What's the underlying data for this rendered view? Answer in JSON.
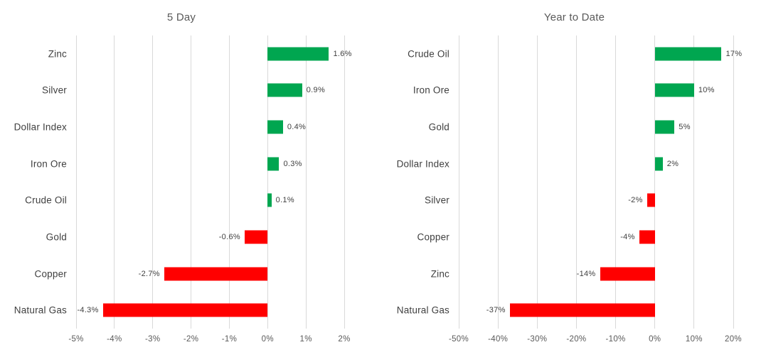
{
  "colors": {
    "positive_bar": "#00a650",
    "negative_bar": "#ff0000",
    "gridline": "#d9d9d9",
    "title_text": "#595959",
    "tick_text": "#595959",
    "label_text": "#404040"
  },
  "chart_data": [
    {
      "type": "bar",
      "orientation": "horizontal",
      "title": "5 Day",
      "categories": [
        "Zinc",
        "Silver",
        "Dollar Index",
        "Iron Ore",
        "Crude Oil",
        "Gold",
        "Copper",
        "Natural Gas"
      ],
      "values": [
        1.6,
        0.9,
        0.4,
        0.3,
        0.1,
        -0.6,
        -2.7,
        -4.3
      ],
      "value_labels": [
        "1.6%",
        "0.9%",
        "0.4%",
        "0.3%",
        "0.1%",
        "-0.6%",
        "-2.7%",
        "-4.3%"
      ],
      "xlim": [
        -5,
        2
      ],
      "xticks": [
        -5,
        -4,
        -3,
        -2,
        -1,
        0,
        1,
        2
      ],
      "xtick_labels": [
        "-5%",
        "-4%",
        "-3%",
        "-2%",
        "-1%",
        "0%",
        "1%",
        "2%"
      ],
      "grid": true,
      "legend": false
    },
    {
      "type": "bar",
      "orientation": "horizontal",
      "title": "Year to Date",
      "categories": [
        "Crude Oil",
        "Iron Ore",
        "Gold",
        "Dollar Index",
        "Silver",
        "Copper",
        "Zinc",
        "Natural Gas"
      ],
      "values": [
        17,
        10,
        5,
        2,
        -2,
        -4,
        -14,
        -37
      ],
      "value_labels": [
        "17%",
        "10%",
        "5%",
        "2%",
        "-2%",
        "-4%",
        "-14%",
        "-37%"
      ],
      "xlim": [
        -50,
        20
      ],
      "xticks": [
        -50,
        -40,
        -30,
        -20,
        -10,
        0,
        10,
        20
      ],
      "xtick_labels": [
        "-50%",
        "-40%",
        "-30%",
        "-20%",
        "-10%",
        "0%",
        "10%",
        "20%"
      ],
      "grid": true,
      "legend": false
    }
  ]
}
